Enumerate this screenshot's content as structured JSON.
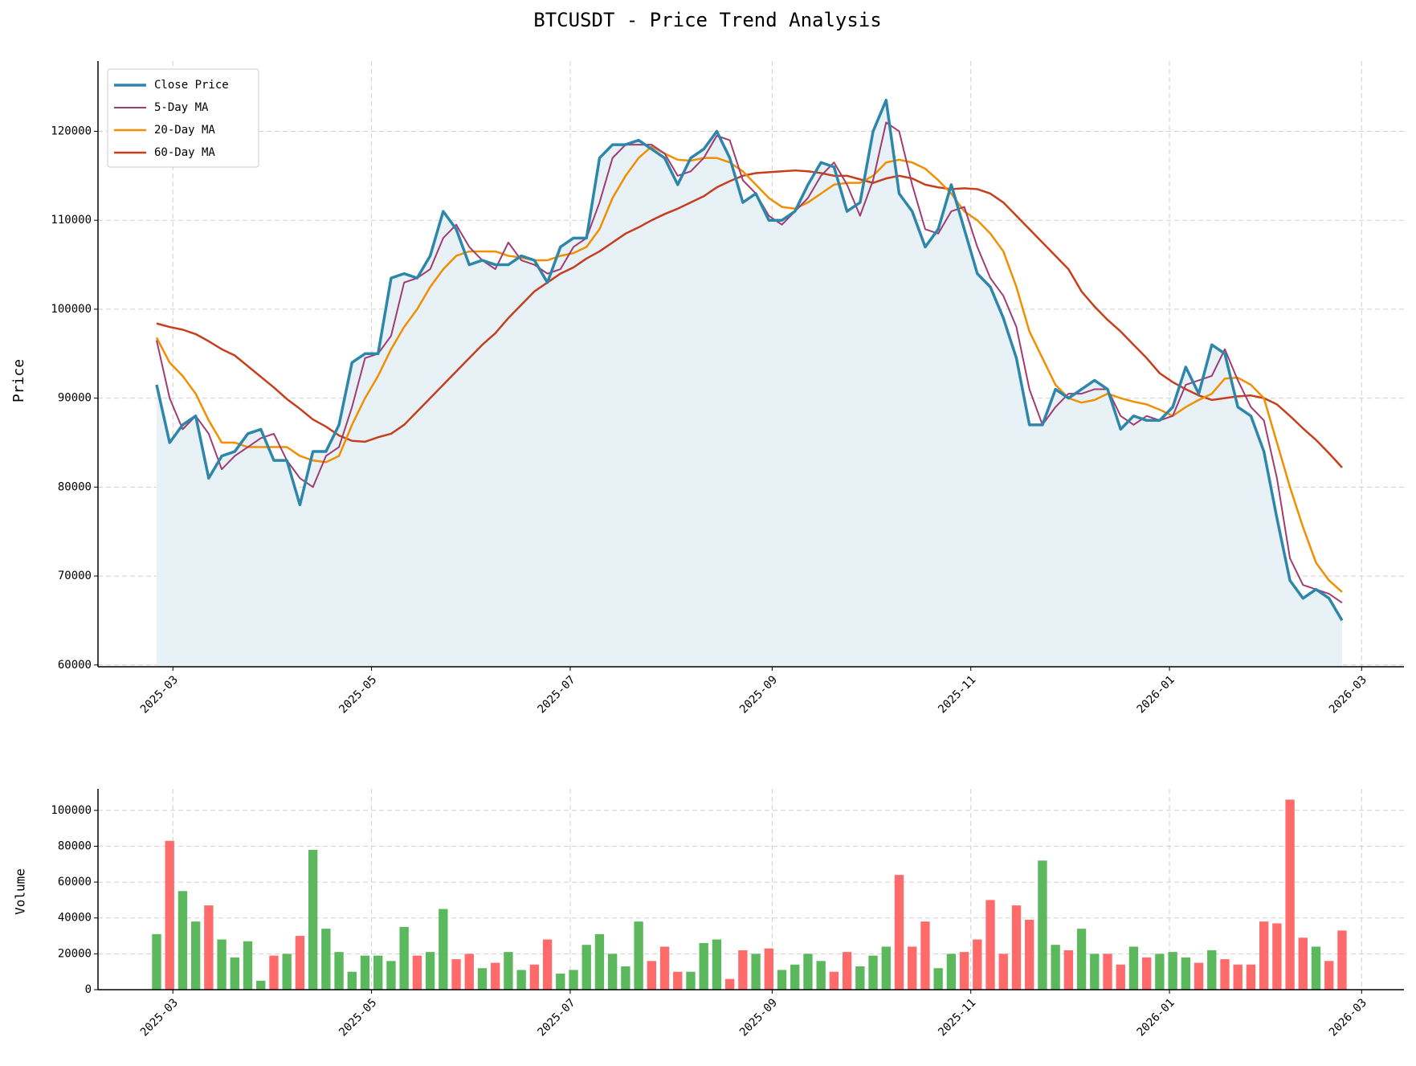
{
  "chart_data": [
    {
      "type": "line",
      "title": "BTCUSDT - Price Trend Analysis",
      "y_label": "Price",
      "x": [
        54,
        58,
        62,
        66,
        70,
        74,
        78,
        82,
        86,
        90,
        94,
        98,
        102,
        106,
        110,
        114,
        118,
        122,
        126,
        130,
        134,
        138,
        142,
        146,
        150,
        154,
        158,
        162,
        166,
        170,
        174,
        178,
        182,
        186,
        190,
        194,
        198,
        202,
        206,
        210,
        214,
        218,
        222,
        226,
        230,
        234,
        238,
        242,
        246,
        250,
        254,
        258,
        262,
        266,
        270,
        274,
        278,
        282,
        286,
        290,
        294,
        298,
        302,
        306,
        310,
        314,
        318,
        322,
        326,
        330,
        334,
        338,
        342,
        346,
        350,
        354,
        358,
        362,
        366,
        370,
        374,
        378,
        382,
        386,
        390,
        394,
        398,
        402,
        406,
        410,
        414,
        418
      ],
      "xlim": [
        36,
        437
      ],
      "ylim": [
        59800,
        127900
      ],
      "grid": true,
      "legend": "upper left",
      "fill_color": "#e7f1f6",
      "xticks": [
        {
          "value": 59,
          "label": "2025-03"
        },
        {
          "value": 120,
          "label": "2025-05"
        },
        {
          "value": 181,
          "label": "2025-07"
        },
        {
          "value": 243,
          "label": "2025-09"
        },
        {
          "value": 304,
          "label": "2025-11"
        },
        {
          "value": 365,
          "label": "2026-01"
        },
        {
          "value": 424,
          "label": "2026-03"
        }
      ],
      "yticks": [
        60000,
        70000,
        80000,
        90000,
        100000,
        110000,
        120000
      ],
      "series": [
        {
          "name": "Close Price",
          "color": "#2e86ab",
          "line_width": 3.5,
          "values": [
            91500,
            85000,
            87000,
            88000,
            81000,
            83500,
            84000,
            86000,
            86500,
            83000,
            83000,
            78000,
            84000,
            84000,
            87000,
            94000,
            95000,
            95000,
            103500,
            104000,
            103500,
            106000,
            111000,
            109000,
            105000,
            105500,
            105000,
            105000,
            106000,
            105500,
            103000,
            107000,
            108000,
            108000,
            117000,
            118500,
            118500,
            119000,
            118000,
            117000,
            114000,
            117000,
            118000,
            120000,
            117000,
            112000,
            113000,
            110000,
            110000,
            111000,
            114000,
            116500,
            116000,
            111000,
            112000,
            120000,
            123500,
            113000,
            111000,
            107000,
            109000,
            114000,
            109000,
            104000,
            102500,
            99000,
            94500,
            87000,
            87000,
            91000,
            90000,
            91000,
            92000,
            91000,
            86500,
            88000,
            87500,
            87500,
            89000,
            93500,
            90500,
            96000,
            95000,
            89000,
            88000,
            84000,
            76500,
            69500,
            67500,
            68500,
            67500,
            65000
          ]
        },
        {
          "name": "5-Day MA",
          "color": "#a23b72",
          "line_width": 2,
          "values": [
            96500,
            90000,
            86500,
            88000,
            86000,
            82000,
            83500,
            84500,
            85500,
            86000,
            83000,
            81000,
            80000,
            83500,
            84500,
            89000,
            94500,
            95000,
            97000,
            103000,
            103500,
            104500,
            108000,
            109500,
            107000,
            105500,
            104500,
            107500,
            105500,
            105000,
            104000,
            104500,
            107000,
            108000,
            112000,
            117000,
            118500,
            118500,
            118500,
            117500,
            115000,
            115500,
            117000,
            119500,
            119000,
            114500,
            113000,
            110500,
            109500,
            111000,
            112500,
            115000,
            116500,
            114000,
            110500,
            114500,
            121000,
            120000,
            114000,
            109000,
            108500,
            111000,
            111500,
            107000,
            103500,
            101500,
            98000,
            91000,
            87000,
            89000,
            90500,
            90500,
            91000,
            91000,
            88000,
            87000,
            88000,
            87500,
            88000,
            91500,
            92000,
            92500,
            95500,
            92000,
            89000,
            87500,
            81000,
            72000,
            69000,
            68500,
            68000,
            67000
          ]
        },
        {
          "name": "20-Day MA",
          "color": "#f18f01",
          "line_width": 2.5,
          "values": [
            96800,
            94000,
            92500,
            90500,
            87500,
            85000,
            85000,
            84500,
            84500,
            84500,
            84500,
            83500,
            83000,
            82800,
            83500,
            87000,
            90000,
            92500,
            95500,
            98000,
            100000,
            102500,
            104500,
            106000,
            106500,
            106500,
            106500,
            106000,
            105800,
            105500,
            105500,
            106000,
            106300,
            107000,
            109000,
            112500,
            115000,
            117000,
            118300,
            117500,
            116800,
            116700,
            117000,
            117000,
            116500,
            115500,
            114000,
            112500,
            111500,
            111300,
            112000,
            113000,
            114000,
            114200,
            114200,
            115000,
            116500,
            116800,
            116500,
            115800,
            114500,
            113000,
            111000,
            110000,
            108500,
            106500,
            102500,
            97500,
            94500,
            91500,
            90000,
            89500,
            89800,
            90500,
            90000,
            89600,
            89300,
            88700,
            88000,
            89000,
            89800,
            90500,
            92200,
            92300,
            91500,
            90000,
            85000,
            80000,
            75500,
            71500,
            69500,
            68200
          ]
        },
        {
          "name": "60-Day MA",
          "color": "#c73e1d",
          "line_width": 2.5,
          "values": [
            98400,
            98000,
            97700,
            97200,
            96400,
            95500,
            94800,
            93600,
            92400,
            91200,
            89900,
            88800,
            87600,
            86800,
            85800,
            85200,
            85100,
            85600,
            86000,
            87000,
            88500,
            90000,
            91500,
            93000,
            94500,
            96000,
            97300,
            99000,
            100500,
            102000,
            103000,
            104000,
            104700,
            105700,
            106500,
            107500,
            108500,
            109200,
            110000,
            110700,
            111300,
            112000,
            112700,
            113700,
            114400,
            115000,
            115300,
            115400,
            115500,
            115600,
            115500,
            115300,
            115000,
            115000,
            114600,
            114200,
            114700,
            115000,
            114700,
            114000,
            113700,
            113500,
            113600,
            113500,
            113000,
            112000,
            110500,
            109000,
            107500,
            106000,
            104500,
            102000,
            100300,
            98800,
            97500,
            96000,
            94500,
            92800,
            91800,
            91000,
            90300,
            89800,
            90000,
            90200,
            90300,
            90000,
            89300,
            88000,
            86600,
            85300,
            83800,
            82200
          ]
        }
      ]
    },
    {
      "type": "bar",
      "y_label": "Volume",
      "x": [
        54,
        58,
        62,
        66,
        70,
        74,
        78,
        82,
        86,
        90,
        94,
        98,
        102,
        106,
        110,
        114,
        118,
        122,
        126,
        130,
        134,
        138,
        142,
        146,
        150,
        154,
        158,
        162,
        166,
        170,
        174,
        178,
        182,
        186,
        190,
        194,
        198,
        202,
        206,
        210,
        214,
        218,
        222,
        226,
        230,
        234,
        238,
        242,
        246,
        250,
        254,
        258,
        262,
        266,
        270,
        274,
        278,
        282,
        286,
        290,
        294,
        298,
        302,
        306,
        310,
        314,
        318,
        322,
        326,
        330,
        334,
        338,
        342,
        346,
        350,
        354,
        358,
        362,
        366,
        370,
        374,
        378,
        382,
        386,
        390,
        394,
        398,
        402,
        406,
        410,
        414,
        418
      ],
      "xlim": [
        36,
        437
      ],
      "ylim": [
        0,
        112000
      ],
      "grid": true,
      "up_color": "#5cb85c",
      "down_color": "#ff6b6b",
      "xticks": [
        {
          "value": 59,
          "label": "2025-03"
        },
        {
          "value": 120,
          "label": "2025-05"
        },
        {
          "value": 181,
          "label": "2025-07"
        },
        {
          "value": 243,
          "label": "2025-09"
        },
        {
          "value": 304,
          "label": "2025-11"
        },
        {
          "value": 365,
          "label": "2026-01"
        },
        {
          "value": 424,
          "label": "2026-03"
        }
      ],
      "yticks": [
        0,
        20000,
        40000,
        60000,
        80000,
        100000
      ],
      "values": [
        31000,
        83000,
        55000,
        38000,
        47000,
        28000,
        18000,
        27000,
        5000,
        19000,
        20000,
        30000,
        78000,
        34000,
        21000,
        10000,
        19000,
        19000,
        16000,
        35000,
        19000,
        21000,
        45000,
        17000,
        20000,
        12000,
        15000,
        21000,
        11000,
        14000,
        28000,
        9000,
        11000,
        25000,
        31000,
        20000,
        13000,
        38000,
        16000,
        24000,
        10000,
        10000,
        26000,
        28000,
        6000,
        22000,
        20000,
        23000,
        11000,
        14000,
        20000,
        16000,
        10000,
        21000,
        13000,
        19000,
        24000,
        64000,
        24000,
        38000,
        12000,
        20000,
        21000,
        28000,
        50000,
        20000,
        47000,
        39000,
        72000,
        25000,
        22000,
        34000,
        20000,
        20000,
        14000,
        24000,
        18000,
        20000,
        21000,
        18000,
        15000,
        22000,
        17000,
        14000,
        14000,
        38000,
        37000,
        106000,
        29000,
        24000,
        16000,
        33000
      ]
    }
  ]
}
